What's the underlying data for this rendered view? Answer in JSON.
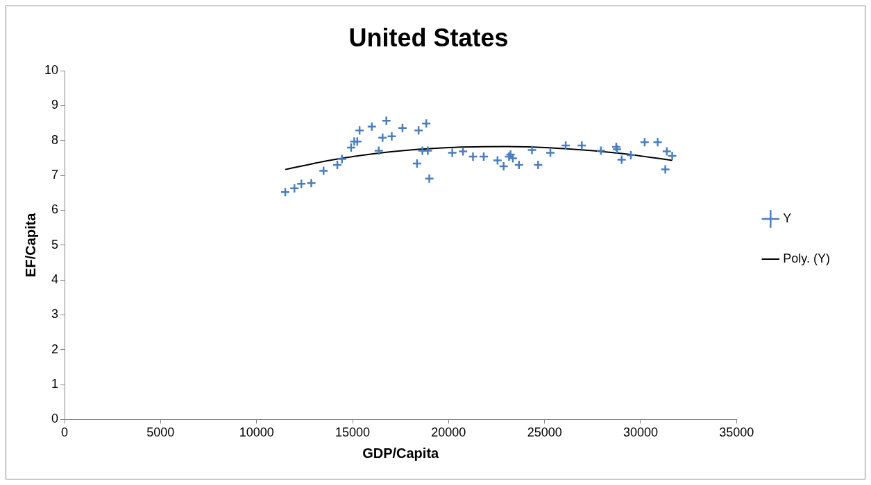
{
  "chart_data": {
    "type": "scatter",
    "title": "United States",
    "xlabel": "GDP/Capita",
    "ylabel": "EF/Capita",
    "xlim": [
      0,
      35000
    ],
    "xticks": [
      0,
      5000,
      10000,
      15000,
      20000,
      25000,
      30000,
      35000
    ],
    "ylim": [
      0,
      10
    ],
    "yticks": [
      0,
      1,
      2,
      3,
      4,
      5,
      6,
      7,
      8,
      9,
      10
    ],
    "grid": false,
    "legend": "right",
    "series": [
      {
        "name": "Y",
        "type": "scatter",
        "marker": "cross",
        "color": "#4a7ebb",
        "x": [
          11494,
          11973,
          12332,
          12851,
          13489,
          14207,
          14447,
          14926,
          15085,
          15245,
          15365,
          16004,
          16363,
          16562,
          16762,
          17041,
          17600,
          18358,
          18438,
          18637,
          18917,
          18837,
          18997,
          20194,
          20753,
          21272,
          21831,
          22549,
          22868,
          23148,
          23228,
          23347,
          23666,
          24345,
          24664,
          25302,
          26100,
          26938,
          27936,
          28734,
          28774,
          29013,
          29493,
          30211,
          30889,
          31288,
          31368,
          31647
        ],
        "values": [
          6.52,
          6.63,
          6.76,
          6.78,
          7.13,
          7.3,
          7.47,
          7.8,
          7.97,
          7.97,
          8.29,
          8.4,
          7.71,
          8.08,
          8.57,
          8.12,
          8.36,
          7.34,
          8.29,
          7.71,
          7.71,
          8.49,
          6.91,
          7.65,
          7.69,
          7.54,
          7.54,
          7.43,
          7.26,
          7.54,
          7.6,
          7.49,
          7.3,
          7.73,
          7.3,
          7.65,
          7.86,
          7.86,
          7.71,
          7.82,
          7.75,
          7.45,
          7.58,
          7.95,
          7.95,
          7.17,
          7.69,
          7.56
        ]
      },
      {
        "name": "Poly. (Y)",
        "type": "line",
        "marker": "none",
        "color": "#000000",
        "x": [
          11494,
          14000,
          17000,
          20000,
          23000,
          26000,
          29000,
          31647
        ],
        "values": [
          7.17,
          7.45,
          7.68,
          7.8,
          7.83,
          7.77,
          7.63,
          7.43
        ]
      }
    ]
  }
}
